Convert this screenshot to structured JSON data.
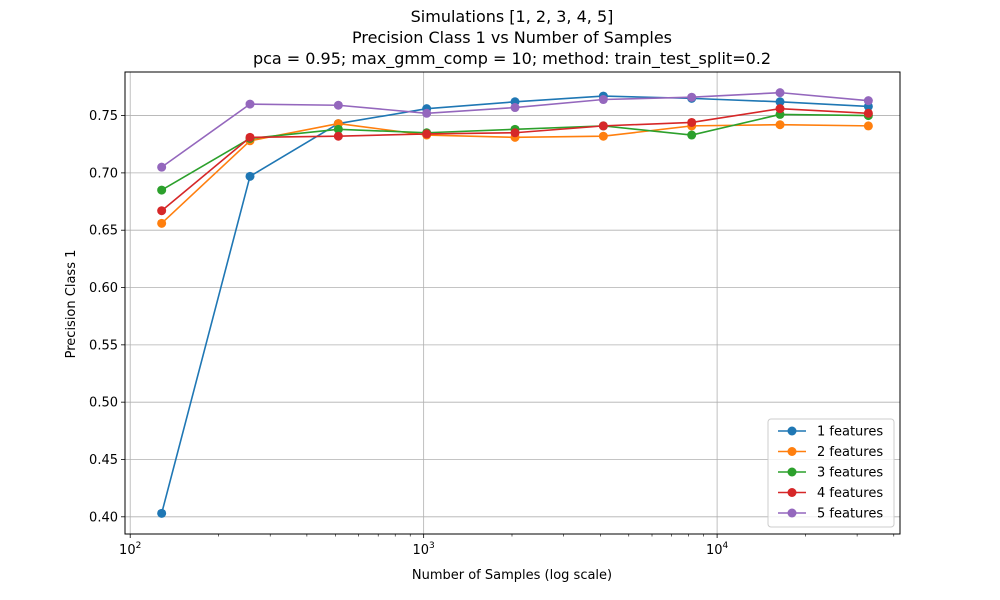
{
  "chart_data": {
    "type": "line",
    "title_lines": [
      "Simulations [1, 2, 3, 4, 5]",
      "Precision Class 1 vs Number of Samples",
      "pca = 0.95; max_gmm_comp = 10; method: train_test_split=0.2"
    ],
    "xlabel": "Number of Samples (log scale)",
    "ylabel": "Precision Class 1",
    "x_scale": "log",
    "xlim": [
      96,
      42000
    ],
    "ylim": [
      0.385,
      0.788
    ],
    "x": [
      128,
      256,
      512,
      1024,
      2048,
      4096,
      8192,
      16384,
      32768
    ],
    "x_ticks": [
      {
        "value": 100,
        "base": "10",
        "exp": "2"
      },
      {
        "value": 1000,
        "base": "10",
        "exp": "3"
      },
      {
        "value": 10000,
        "base": "10",
        "exp": "4"
      }
    ],
    "y_ticks": [
      0.4,
      0.45,
      0.5,
      0.55,
      0.6,
      0.65,
      0.7,
      0.75
    ],
    "y_tick_labels": [
      "0.40",
      "0.45",
      "0.50",
      "0.55",
      "0.60",
      "0.65",
      "0.70",
      "0.75"
    ],
    "grid": true,
    "legend_position": "lower-right",
    "series": [
      {
        "name": "1 features",
        "color": "#1f77b4",
        "values": [
          0.403,
          0.697,
          0.743,
          0.756,
          0.762,
          0.767,
          0.765,
          0.762,
          0.758
        ]
      },
      {
        "name": "2 features",
        "color": "#ff7f0e",
        "values": [
          0.656,
          0.728,
          0.743,
          0.733,
          0.731,
          0.732,
          0.741,
          0.742,
          0.741
        ]
      },
      {
        "name": "3 features",
        "color": "#2ca02c",
        "values": [
          0.685,
          0.73,
          0.738,
          0.735,
          0.738,
          0.741,
          0.733,
          0.751,
          0.75
        ]
      },
      {
        "name": "4 features",
        "color": "#d62728",
        "values": [
          0.667,
          0.731,
          0.732,
          0.734,
          0.735,
          0.741,
          0.744,
          0.756,
          0.752
        ]
      },
      {
        "name": "5 features",
        "color": "#9467bd",
        "values": [
          0.705,
          0.76,
          0.759,
          0.752,
          0.757,
          0.764,
          0.766,
          0.77,
          0.763
        ]
      }
    ]
  }
}
